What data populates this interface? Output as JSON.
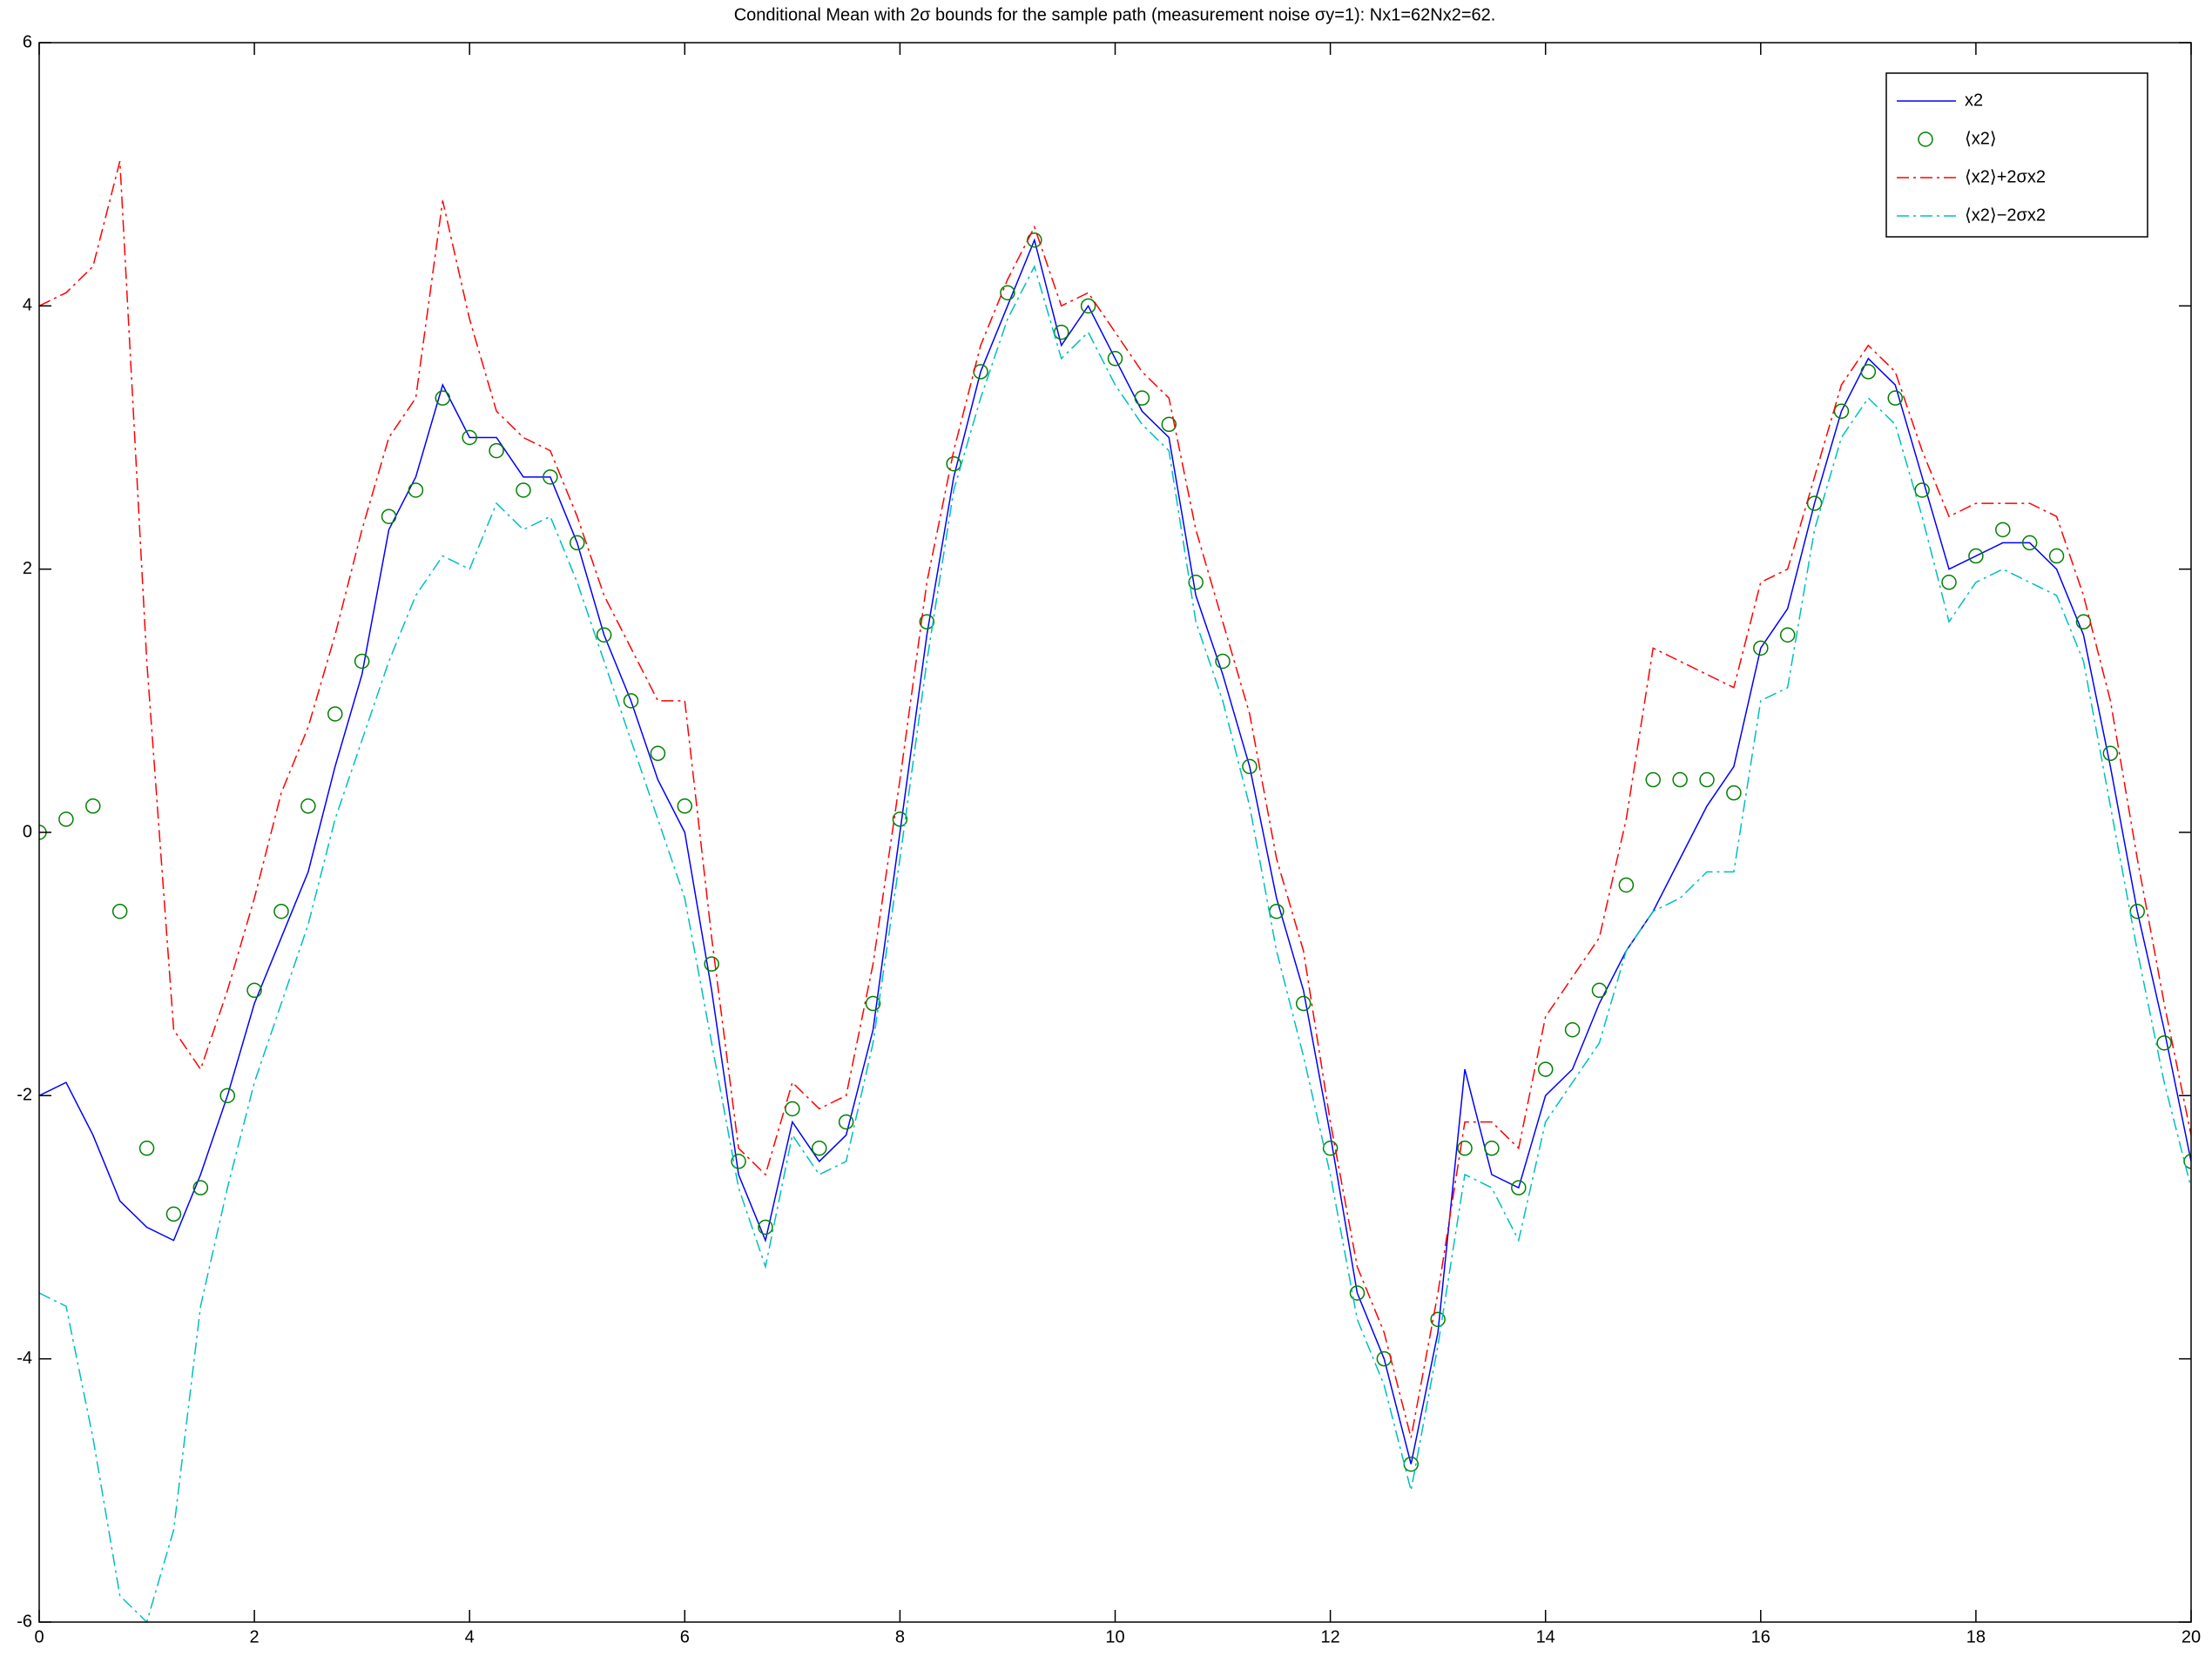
{
  "chart_data": {
    "type": "line",
    "title": "Conditional Mean with 2σ bounds for the sample path (measurement noise σy=1): Nx1=62Nx2=62.",
    "x": [
      0,
      0.25,
      0.5,
      0.75,
      1,
      1.25,
      1.5,
      1.75,
      2,
      2.25,
      2.5,
      2.75,
      3,
      3.25,
      3.5,
      3.75,
      4,
      4.25,
      4.5,
      4.75,
      5,
      5.25,
      5.5,
      5.75,
      6,
      6.25,
      6.5,
      6.75,
      7,
      7.25,
      7.5,
      7.75,
      8,
      8.25,
      8.5,
      8.75,
      9,
      9.25,
      9.5,
      9.75,
      10,
      10.25,
      10.5,
      10.75,
      11,
      11.25,
      11.5,
      11.75,
      12,
      12.25,
      12.5,
      12.75,
      13,
      13.25,
      13.5,
      13.75,
      14,
      14.25,
      14.5,
      14.75,
      15,
      15.25,
      15.5,
      15.75,
      16,
      16.25,
      16.5,
      16.75,
      17,
      17.25,
      17.5,
      17.75,
      18,
      18.25,
      18.5,
      18.75,
      19,
      19.25,
      19.5,
      19.75,
      20
    ],
    "series": [
      {
        "name": "x2",
        "color": "#0000ff",
        "style": "solid",
        "values": [
          -2.0,
          -1.9,
          -2.3,
          -2.8,
          -3.0,
          -3.1,
          -2.6,
          -2.0,
          -1.3,
          -0.8,
          -0.3,
          0.5,
          1.2,
          2.3,
          2.7,
          3.4,
          3.0,
          3.0,
          2.7,
          2.7,
          2.2,
          1.5,
          1.0,
          0.4,
          0.0,
          -1.2,
          -2.6,
          -3.1,
          -2.2,
          -2.5,
          -2.3,
          -1.5,
          0.0,
          1.5,
          2.7,
          3.5,
          4.0,
          4.5,
          3.7,
          4.0,
          3.6,
          3.2,
          3.0,
          1.8,
          1.2,
          0.5,
          -0.5,
          -1.2,
          -2.3,
          -3.5,
          -4.0,
          -4.8,
          -3.8,
          -1.8,
          -2.6,
          -2.7,
          -2.0,
          -1.8,
          -1.3,
          -0.9,
          -0.6,
          -0.2,
          0.2,
          0.5,
          1.4,
          1.7,
          2.5,
          3.2,
          3.6,
          3.4,
          2.7,
          2.0,
          2.1,
          2.2,
          2.2,
          2.0,
          1.5,
          0.5,
          -0.6,
          -1.5,
          -2.5
        ]
      },
      {
        "name": "⟨x2⟩",
        "color": "#008000",
        "style": "circle",
        "values": [
          0,
          0.1,
          0.2,
          -0.6,
          -2.4,
          -2.9,
          -2.7,
          -2.0,
          -1.2,
          -0.6,
          0.2,
          0.9,
          1.3,
          2.4,
          2.6,
          3.3,
          3.0,
          2.9,
          2.6,
          2.7,
          2.2,
          1.5,
          1.0,
          0.6,
          0.2,
          -1.0,
          -2.5,
          -3.0,
          -2.1,
          -2.4,
          -2.2,
          -1.3,
          0.1,
          1.6,
          2.8,
          3.5,
          4.1,
          4.5,
          3.8,
          4.0,
          3.6,
          3.3,
          3.1,
          1.9,
          1.3,
          0.5,
          -0.6,
          -1.3,
          -2.4,
          -3.5,
          -4.0,
          -4.8,
          -3.7,
          -2.4,
          -2.4,
          -2.7,
          -1.8,
          -1.5,
          -1.2,
          -0.4,
          0.4,
          0.4,
          0.4,
          0.3,
          1.4,
          1.5,
          2.5,
          3.2,
          3.5,
          3.3,
          2.6,
          1.9,
          2.1,
          2.3,
          2.2,
          2.1,
          1.6,
          0.6,
          -0.6,
          -1.6,
          -2.5
        ]
      },
      {
        "name": "⟨x2⟩+2σx2",
        "color": "#ff0000",
        "style": "dashdot",
        "values": [
          4.0,
          4.1,
          4.3,
          5.1,
          1.3,
          -1.5,
          -1.8,
          -1.2,
          -0.5,
          0.3,
          0.8,
          1.5,
          2.3,
          3.0,
          3.3,
          4.8,
          3.9,
          3.2,
          3.0,
          2.9,
          2.4,
          1.8,
          1.4,
          1.0,
          1.0,
          -0.8,
          -2.4,
          -2.6,
          -1.9,
          -2.1,
          -2.0,
          -1.0,
          0.4,
          1.9,
          2.9,
          3.7,
          4.2,
          4.6,
          4.0,
          4.1,
          3.8,
          3.5,
          3.3,
          2.3,
          1.6,
          0.9,
          -0.2,
          -0.9,
          -2.2,
          -3.3,
          -3.8,
          -4.6,
          -3.5,
          -2.2,
          -2.2,
          -2.4,
          -1.4,
          -1.1,
          -0.8,
          0.1,
          1.4,
          1.3,
          1.2,
          1.1,
          1.9,
          2.0,
          2.7,
          3.4,
          3.7,
          3.5,
          2.9,
          2.4,
          2.5,
          2.5,
          2.5,
          2.4,
          1.8,
          1.0,
          -0.2,
          -1.3,
          -2.3
        ]
      },
      {
        "name": "⟨x2⟩−2σx2",
        "color": "#00bfbf",
        "style": "dashdot",
        "values": [
          -3.5,
          -3.6,
          -4.6,
          -5.8,
          -6.0,
          -5.3,
          -3.6,
          -2.7,
          -1.9,
          -1.3,
          -0.7,
          0.1,
          0.7,
          1.3,
          1.8,
          2.1,
          2.0,
          2.5,
          2.3,
          2.4,
          1.9,
          1.3,
          0.7,
          0.1,
          -0.5,
          -1.6,
          -2.7,
          -3.3,
          -2.3,
          -2.6,
          -2.5,
          -1.6,
          -0.2,
          1.3,
          2.6,
          3.3,
          3.9,
          4.3,
          3.6,
          3.8,
          3.4,
          3.1,
          2.9,
          1.6,
          1.0,
          0.2,
          -0.9,
          -1.7,
          -2.6,
          -3.7,
          -4.2,
          -5.0,
          -3.9,
          -2.6,
          -2.7,
          -3.1,
          -2.2,
          -1.9,
          -1.6,
          -0.9,
          -0.6,
          -0.5,
          -0.3,
          -0.3,
          1.0,
          1.1,
          2.3,
          3.0,
          3.3,
          3.1,
          2.4,
          1.6,
          1.9,
          2.0,
          1.9,
          1.8,
          1.3,
          0.2,
          -0.9,
          -1.9,
          -2.7
        ]
      }
    ],
    "xlim": [
      0,
      20
    ],
    "xticks": [
      0,
      2,
      4,
      6,
      8,
      10,
      12,
      14,
      16,
      18,
      20
    ],
    "ylim": [
      -6,
      6
    ],
    "yticks": [
      -6,
      -4,
      -2,
      0,
      2,
      4,
      6
    ],
    "grid": false,
    "legend": "upper right"
  }
}
